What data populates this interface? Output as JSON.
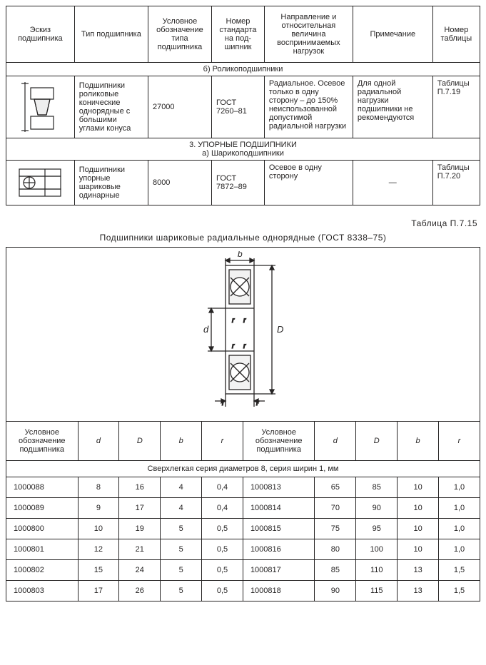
{
  "top_table": {
    "headers": [
      "Эскиз подшипника",
      "Тип подшипника",
      "Условное обозначение типа подшипника",
      "Номер стандарта на под­шипник",
      "Направление и относительная величина воспринимаемых нагрузок",
      "Примечание",
      "Номер таблицы"
    ],
    "section_b": "б) Роликоподшипники",
    "row1": {
      "type": "Подшипники роликовые конические однорядные с большими углами конуса",
      "code": "27000",
      "std": "ГОСТ 7260–81",
      "load": "Радиальное. Осевое только в одну сторону – до 150% неиспользованной допустимой радиальной нагрузки",
      "note": "Для одной радиальной нагрузки подшипники не рекомендуются",
      "tbl": "Таблицы П.7.19"
    },
    "section_3_title": "3. УПОРНЫЕ ПОДШИПНИКИ",
    "section_3_sub": "а) Шарикоподшипники",
    "row2": {
      "type": "Подшипники упорные шариковые одинарные",
      "code": "8000",
      "std": "ГОСТ 7872–89",
      "load": "Осевое в одну сторону",
      "note": "—",
      "tbl": "Таблицы П.7.20"
    }
  },
  "title_right": "Таблица П.7.15",
  "title_center": "Подшипники шариковые радиальные однорядные (ГОСТ 8338–75)",
  "dim_table": {
    "headers": {
      "col1": "Условное обозначение подшипника",
      "d": "d",
      "D": "D",
      "b": "b",
      "r": "r"
    },
    "diagram_labels": {
      "b": "b",
      "d": "d",
      "D": "D",
      "r": "r"
    },
    "section": "Сверхлегкая серия диаметров 8, серия ширин 1, мм",
    "rows": [
      [
        "1000088",
        "8",
        "16",
        "4",
        "0,4",
        "1000813",
        "65",
        "85",
        "10",
        "1,0"
      ],
      [
        "1000089",
        "9",
        "17",
        "4",
        "0,4",
        "1000814",
        "70",
        "90",
        "10",
        "1,0"
      ],
      [
        "1000800",
        "10",
        "19",
        "5",
        "0,5",
        "1000815",
        "75",
        "95",
        "10",
        "1,0"
      ],
      [
        "1000801",
        "12",
        "21",
        "5",
        "0,5",
        "1000816",
        "80",
        "100",
        "10",
        "1,0"
      ],
      [
        "1000802",
        "15",
        "24",
        "5",
        "0,5",
        "1000817",
        "85",
        "110",
        "13",
        "1,5"
      ],
      [
        "1000803",
        "17",
        "26",
        "5",
        "0,5",
        "1000818",
        "90",
        "115",
        "13",
        "1,5"
      ]
    ]
  }
}
